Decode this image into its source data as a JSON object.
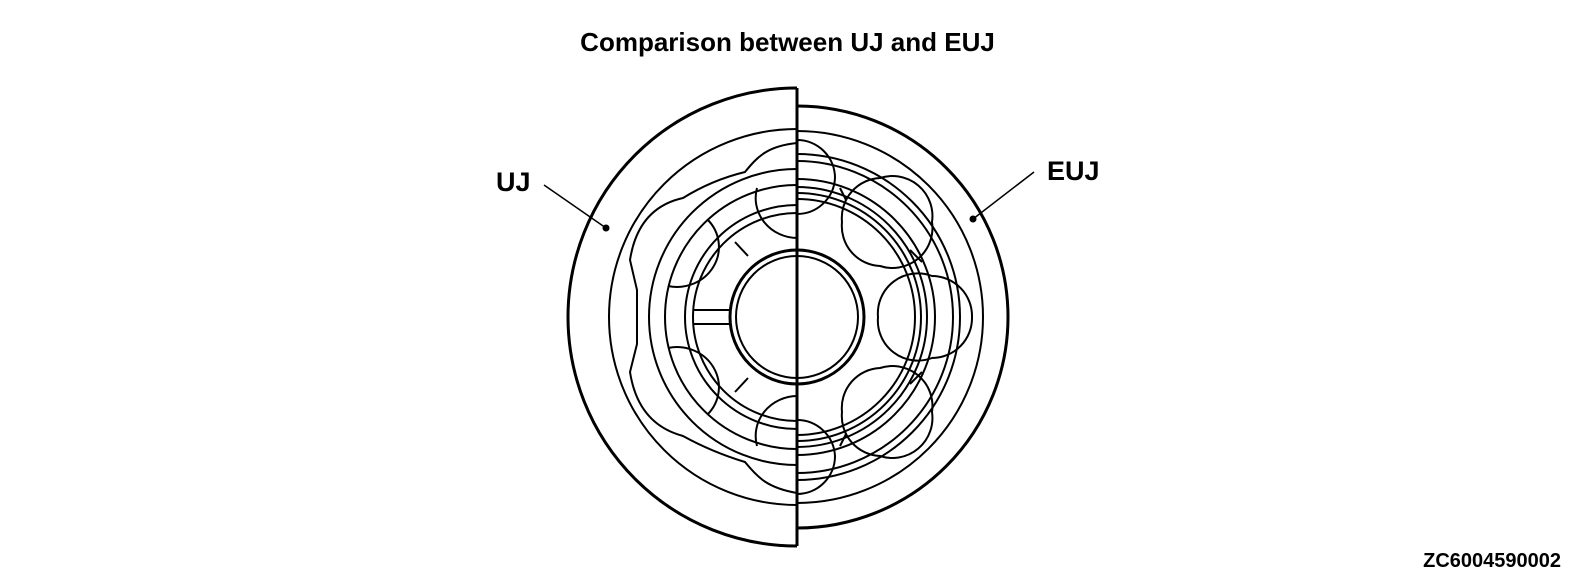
{
  "title": "Comparison between UJ and EUJ",
  "labels": {
    "left": "UJ",
    "right": "EUJ"
  },
  "figure_code": "ZC6004590002",
  "colors": {
    "line": "#000000",
    "background": "#ffffff"
  }
}
